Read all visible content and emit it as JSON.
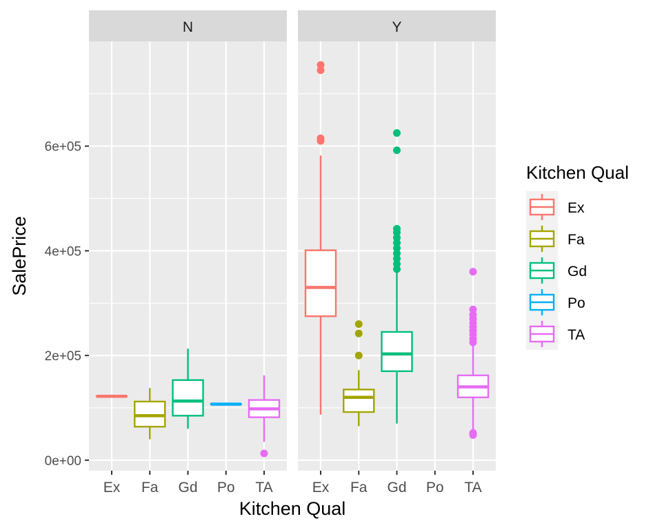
{
  "chart_data": {
    "type": "boxplot",
    "facet_variable": "",
    "panels": [
      "N",
      "Y"
    ],
    "categories": [
      "Ex",
      "Fa",
      "Gd",
      "Po",
      "TA"
    ],
    "xlabel": "Kitchen Qual",
    "ylabel": "SalePrice",
    "ylim": [
      -20000,
      800000
    ],
    "yticks": [
      0,
      200000,
      400000,
      600000
    ],
    "ytick_labels": [
      "0e+00",
      "2e+05",
      "4e+05",
      "6e+05"
    ],
    "grid": true,
    "legend": {
      "title": "Kitchen Qual",
      "position": "right",
      "entries": [
        "Ex",
        "Fa",
        "Gd",
        "Po",
        "TA"
      ]
    },
    "colors": {
      "Ex": "#F8766D",
      "Fa": "#A3A500",
      "Gd": "#00BF7D",
      "Po": "#00B0F6",
      "TA": "#E76BF3"
    },
    "boxes": [
      {
        "panel": "N",
        "category": "Ex",
        "min": 122000,
        "q1": 122000,
        "median": 122000,
        "q3": 122000,
        "max": 122000,
        "outliers": []
      },
      {
        "panel": "N",
        "category": "Fa",
        "min": 40000,
        "q1": 64000,
        "median": 85000,
        "q3": 112000,
        "max": 138000,
        "outliers": []
      },
      {
        "panel": "N",
        "category": "Gd",
        "min": 60000,
        "q1": 85000,
        "median": 113000,
        "q3": 153000,
        "max": 213000,
        "outliers": []
      },
      {
        "panel": "N",
        "category": "Po",
        "min": 107000,
        "q1": 107000,
        "median": 107000,
        "q3": 107000,
        "max": 107000,
        "outliers": []
      },
      {
        "panel": "N",
        "category": "TA",
        "min": 35000,
        "q1": 82000,
        "median": 98000,
        "q3": 115000,
        "max": 162000,
        "outliers": [
          13000
        ]
      },
      {
        "panel": "Y",
        "category": "Ex",
        "min": 87000,
        "q1": 275000,
        "median": 330000,
        "q3": 401000,
        "max": 582000,
        "outliers": [
          610000,
          615000,
          745000,
          755000
        ]
      },
      {
        "panel": "Y",
        "category": "Fa",
        "min": 65000,
        "q1": 92000,
        "median": 120000,
        "q3": 135000,
        "max": 172000,
        "outliers": [
          200000,
          242000,
          260000
        ]
      },
      {
        "panel": "Y",
        "category": "Gd",
        "min": 70000,
        "q1": 170000,
        "median": 203000,
        "q3": 245000,
        "max": 360000,
        "outliers": [
          365000,
          375000,
          385000,
          395000,
          405000,
          415000,
          425000,
          435000,
          442000,
          592000,
          625000
        ]
      },
      {
        "panel": "Y",
        "category": "TA",
        "min": 52000,
        "q1": 120000,
        "median": 140000,
        "q3": 162000,
        "max": 220000,
        "outliers": [
          48000,
          52000,
          225000,
          232000,
          240000,
          248000,
          255000,
          262000,
          270000,
          278000,
          288000,
          360000
        ]
      }
    ]
  }
}
